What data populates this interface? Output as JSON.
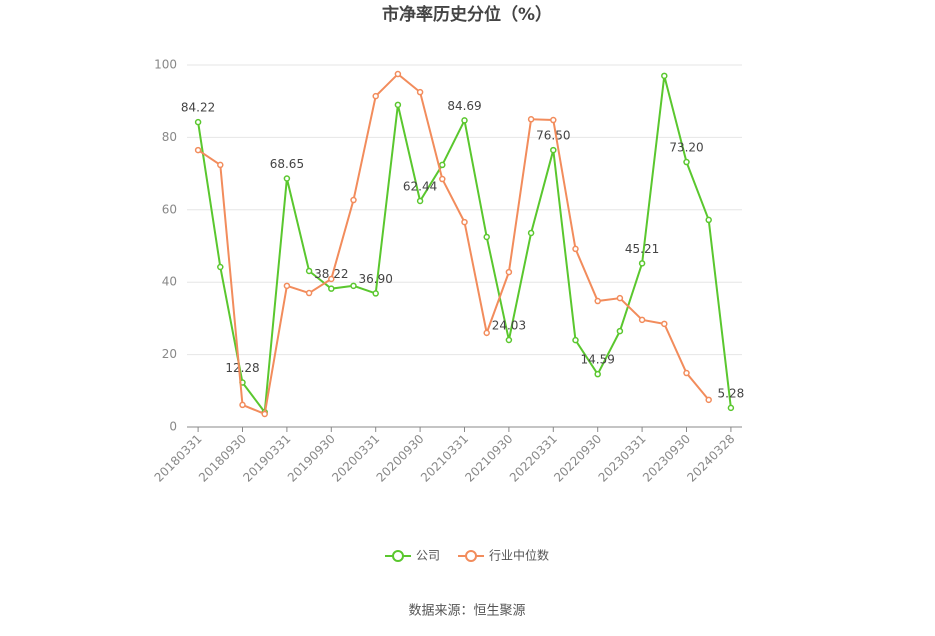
{
  "chart_data": {
    "type": "line",
    "title": "市净率历史分位（%）",
    "source": "数据来源：恒生聚源",
    "categories": [
      "20180331",
      null,
      "20180930",
      null,
      "20190331",
      null,
      "20190930",
      null,
      "20200331",
      null,
      "20200930",
      null,
      "20210331",
      null,
      "20210930",
      null,
      "20220331",
      null,
      "20220930",
      null,
      "20230331",
      null,
      "20230930",
      null,
      "20240328"
    ],
    "series": [
      {
        "name": "公司",
        "color": "#5ac72e",
        "values": [
          84.22,
          44.2,
          12.28,
          4.1,
          68.65,
          43.1,
          38.22,
          39,
          36.9,
          89,
          62.44,
          72.4,
          84.69,
          52.5,
          24.03,
          53.6,
          76.5,
          24,
          14.59,
          26.5,
          45.21,
          97,
          73.2,
          57.2,
          5.28
        ],
        "value_labels": [
          "84.22",
          null,
          "12.28",
          null,
          "68.65",
          null,
          "38.22",
          null,
          "36.90",
          null,
          "62.44",
          null,
          "84.69",
          null,
          "24.03",
          null,
          "76.50",
          null,
          "14.59",
          null,
          "45.21",
          null,
          "73.20",
          null,
          "5.28"
        ]
      },
      {
        "name": "行业中位数",
        "color": "#f28c5c",
        "values": [
          76.5,
          72.4,
          6.1,
          3.6,
          39,
          37,
          40.9,
          62.7,
          91.4,
          97.5,
          92.5,
          68.5,
          56.6,
          26,
          42.8,
          85,
          84.8,
          49.2,
          34.8,
          35.6,
          29.6,
          28.5,
          14.9,
          7.5,
          null
        ]
      }
    ],
    "ylim": [
      0,
      100
    ],
    "yticks": [
      0,
      20,
      40,
      60,
      80,
      100
    ],
    "grid": true,
    "legend": "bottom"
  }
}
